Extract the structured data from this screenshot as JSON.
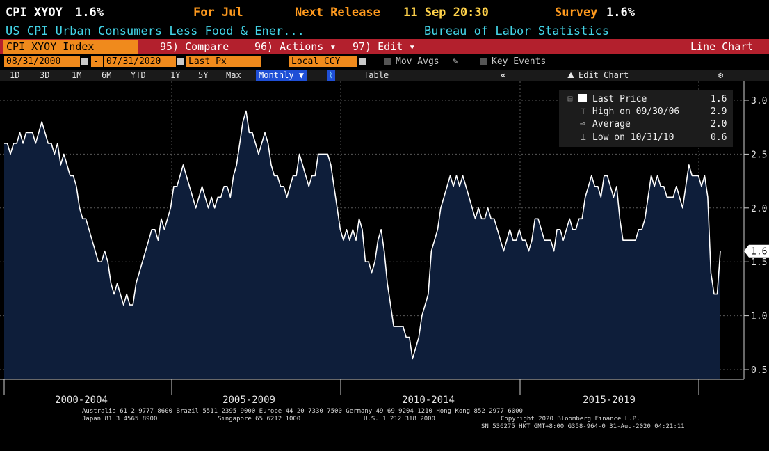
{
  "header": {
    "ticker": "CPI XYOY",
    "value": "1.6%",
    "period": "For Jul",
    "next_release_label": "Next Release",
    "next_release_value": "11 Sep 20:30",
    "survey_label": "Survey",
    "survey_value": "1.6%",
    "description": "US CPI Urban Consumers Less Food & Ener...",
    "source": "Bureau of Labor Statistics"
  },
  "toolbar": {
    "security": "CPI XYOY Index",
    "compare": "95) Compare",
    "actions": "96) Actions ▾",
    "edit": "97) Edit ▾",
    "view": "Line Chart"
  },
  "controls": {
    "start_date": "08/31/2000",
    "date_sep": "-",
    "end_date": "07/31/2020",
    "field": "Last Px",
    "currency": "Local CCY",
    "mov_avgs": "Mov Avgs",
    "key_events": "Key Events"
  },
  "periods": [
    "1D",
    "3D",
    "1M",
    "6M",
    "YTD",
    "1Y",
    "5Y",
    "Max"
  ],
  "frequency": "Monthly ▼",
  "table_label": "Table",
  "collapse_label": "«",
  "edit_chart": "Edit Chart",
  "footer": {
    "line1": "Australia 61 2 9777 8600 Brazil 5511 2395 9000 Europe 44 20 7330 7500 Germany 49 69 9204 1210 Hong Kong 852 2977 6000",
    "line2a": "Japan 81 3 4565 8900",
    "line2b": "Singapore 65 6212 1000",
    "line2c": "U.S. 1 212 318 2000",
    "line2d": "Copyright 2020 Bloomberg Finance L.P.",
    "line3": "SN 536275 HKT  GMT+8:00 G358-964-0 31-Aug-2020 04:21:11"
  },
  "colors": {
    "area_fill": "#0e1e3a",
    "line": "#ffffff",
    "header_orange": "#ff9a1e",
    "cyan": "#43d5e8",
    "toolbar_red": "#b3202d"
  },
  "chart_data": {
    "type": "area",
    "series": [
      {
        "name": "Last Price",
        "start": "2000-08",
        "frequency": "monthly",
        "values": [
          2.6,
          2.6,
          2.5,
          2.6,
          2.6,
          2.7,
          2.6,
          2.7,
          2.7,
          2.7,
          2.6,
          2.7,
          2.8,
          2.7,
          2.6,
          2.6,
          2.5,
          2.6,
          2.4,
          2.5,
          2.4,
          2.3,
          2.3,
          2.2,
          2.0,
          1.9,
          1.9,
          1.8,
          1.7,
          1.6,
          1.5,
          1.5,
          1.6,
          1.5,
          1.3,
          1.2,
          1.3,
          1.2,
          1.1,
          1.2,
          1.1,
          1.1,
          1.3,
          1.4,
          1.5,
          1.6,
          1.7,
          1.8,
          1.8,
          1.7,
          1.9,
          1.8,
          1.9,
          2.0,
          2.2,
          2.2,
          2.3,
          2.4,
          2.3,
          2.2,
          2.1,
          2.0,
          2.1,
          2.2,
          2.1,
          2.0,
          2.1,
          2.0,
          2.1,
          2.1,
          2.2,
          2.2,
          2.1,
          2.3,
          2.4,
          2.6,
          2.8,
          2.9,
          2.7,
          2.7,
          2.6,
          2.5,
          2.6,
          2.7,
          2.6,
          2.4,
          2.3,
          2.3,
          2.2,
          2.2,
          2.1,
          2.2,
          2.3,
          2.3,
          2.5,
          2.4,
          2.3,
          2.2,
          2.3,
          2.3,
          2.5,
          2.5,
          2.5,
          2.5,
          2.4,
          2.2,
          2.0,
          1.8,
          1.7,
          1.8,
          1.7,
          1.8,
          1.7,
          1.9,
          1.8,
          1.5,
          1.5,
          1.4,
          1.5,
          1.7,
          1.8,
          1.6,
          1.3,
          1.1,
          0.9,
          0.9,
          0.9,
          0.9,
          0.8,
          0.8,
          0.6,
          0.7,
          0.8,
          1.0,
          1.1,
          1.2,
          1.6,
          1.7,
          1.8,
          2.0,
          2.1,
          2.2,
          2.3,
          2.2,
          2.3,
          2.2,
          2.3,
          2.2,
          2.1,
          2.0,
          1.9,
          2.0,
          1.9,
          1.9,
          2.0,
          1.9,
          1.9,
          1.8,
          1.7,
          1.6,
          1.7,
          1.8,
          1.7,
          1.7,
          1.8,
          1.7,
          1.7,
          1.6,
          1.7,
          1.9,
          1.9,
          1.8,
          1.7,
          1.7,
          1.7,
          1.6,
          1.8,
          1.8,
          1.7,
          1.8,
          1.9,
          1.8,
          1.8,
          1.9,
          1.9,
          2.1,
          2.2,
          2.3,
          2.2,
          2.2,
          2.1,
          2.3,
          2.3,
          2.2,
          2.1,
          2.2,
          1.9,
          1.7,
          1.7,
          1.7,
          1.7,
          1.7,
          1.8,
          1.8,
          1.9,
          2.1,
          2.3,
          2.2,
          2.3,
          2.2,
          2.2,
          2.1,
          2.1,
          2.1,
          2.2,
          2.1,
          2.0,
          2.2,
          2.4,
          2.3,
          2.3,
          2.3,
          2.2,
          2.3,
          2.1,
          1.4,
          1.2,
          1.2,
          1.6
        ]
      }
    ],
    "xlabels": [
      "2000-2004",
      "2005-2009",
      "2010-2014",
      "2015-2019"
    ],
    "y_ticks": [
      0.5,
      1.0,
      1.5,
      2.0,
      2.5,
      3.0
    ],
    "ylim": [
      0.5,
      3.1
    ],
    "last_value_label": "1.6",
    "grid": true,
    "legend_position": "top-right",
    "legend": [
      {
        "label": "Last Price",
        "value": "1.6"
      },
      {
        "label": "High on 09/30/06",
        "value": "2.9"
      },
      {
        "label": "Average",
        "value": "2.0"
      },
      {
        "label": "Low on 10/31/10",
        "value": "0.6"
      }
    ]
  }
}
